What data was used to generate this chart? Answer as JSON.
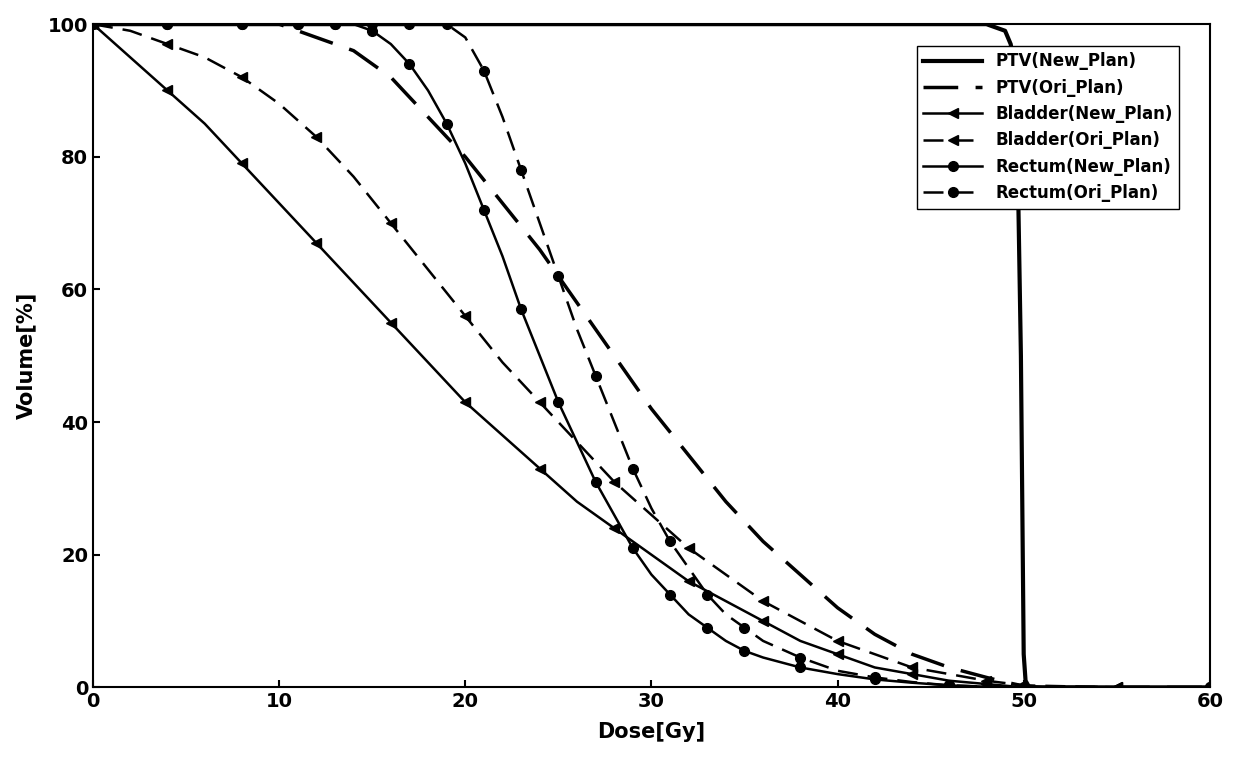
{
  "title": "",
  "xlabel": "Dose[Gy]",
  "ylabel": "Volume[%]",
  "xlim": [
    0,
    60
  ],
  "ylim": [
    0,
    100
  ],
  "xticks": [
    0,
    10,
    20,
    30,
    40,
    50,
    60
  ],
  "yticks": [
    0,
    20,
    40,
    60,
    80,
    100
  ],
  "background_color": "#ffffff",
  "ptv_new": {
    "x": [
      0,
      5,
      10,
      15,
      20,
      25,
      30,
      35,
      40,
      45,
      47,
      48,
      48.5,
      49.0,
      49.3,
      49.6,
      49.85,
      50.0,
      50.1,
      50.3,
      51,
      55,
      60
    ],
    "y": [
      100,
      100,
      100,
      100,
      100,
      100,
      100,
      100,
      100,
      100,
      100,
      100,
      99.5,
      99,
      97,
      92,
      50,
      5,
      1,
      0,
      0,
      0,
      0
    ]
  },
  "ptv_ori": {
    "x": [
      0,
      5,
      8,
      10,
      11,
      12,
      13,
      14,
      15,
      16,
      17,
      18,
      20,
      22,
      24,
      26,
      28,
      30,
      32,
      34,
      36,
      38,
      40,
      42,
      44,
      46,
      48,
      49,
      50,
      51,
      55,
      60
    ],
    "y": [
      100,
      100,
      100,
      100,
      99,
      98,
      97,
      96,
      94,
      92,
      89,
      86,
      80,
      73,
      66,
      58,
      50,
      42,
      35,
      28,
      22,
      17,
      12,
      8,
      5,
      3,
      1.5,
      0.8,
      0.2,
      0,
      0,
      0
    ]
  },
  "bladder_new": {
    "x": [
      0,
      2,
      4,
      6,
      8,
      10,
      12,
      14,
      16,
      18,
      20,
      22,
      24,
      26,
      28,
      30,
      32,
      34,
      36,
      38,
      40,
      42,
      44,
      46,
      48,
      50,
      55,
      60
    ],
    "y": [
      100,
      95,
      90,
      85,
      79,
      73,
      67,
      61,
      55,
      49,
      43,
      38,
      33,
      28,
      24,
      20,
      16,
      13,
      10,
      7,
      5,
      3,
      2,
      1,
      0.5,
      0,
      0,
      0
    ]
  },
  "bladder_ori": {
    "x": [
      0,
      2,
      4,
      6,
      8,
      10,
      12,
      14,
      16,
      18,
      20,
      22,
      24,
      26,
      28,
      30,
      32,
      34,
      36,
      38,
      40,
      42,
      44,
      46,
      48,
      50,
      55,
      60
    ],
    "y": [
      100,
      99,
      97,
      95,
      92,
      88,
      83,
      77,
      70,
      63,
      56,
      49,
      43,
      37,
      31,
      26,
      21,
      17,
      13,
      10,
      7,
      5,
      3,
      2,
      1,
      0.3,
      0,
      0
    ]
  },
  "rectum_new": {
    "x": [
      0,
      2,
      4,
      6,
      8,
      10,
      11,
      12,
      13,
      14,
      15,
      16,
      17,
      18,
      19,
      20,
      21,
      22,
      23,
      24,
      25,
      26,
      27,
      28,
      29,
      30,
      31,
      32,
      33,
      34,
      35,
      36,
      38,
      40,
      42,
      44,
      46,
      48,
      50,
      55,
      60
    ],
    "y": [
      100,
      100,
      100,
      100,
      100,
      100,
      100,
      100,
      100,
      100,
      99,
      97,
      94,
      90,
      85,
      79,
      72,
      65,
      57,
      50,
      43,
      37,
      31,
      26,
      21,
      17,
      14,
      11,
      9,
      7,
      5.5,
      4.5,
      3,
      2,
      1.2,
      0.7,
      0.3,
      0.1,
      0,
      0,
      0
    ]
  },
  "rectum_ori": {
    "x": [
      0,
      2,
      4,
      6,
      8,
      10,
      11,
      12,
      13,
      14,
      15,
      16,
      17,
      18,
      19,
      20,
      21,
      22,
      23,
      24,
      25,
      26,
      27,
      28,
      29,
      30,
      31,
      32,
      33,
      34,
      35,
      36,
      38,
      40,
      42,
      44,
      46,
      48,
      50,
      55,
      60
    ],
    "y": [
      100,
      100,
      100,
      100,
      100,
      100,
      100,
      100,
      100,
      100,
      100,
      100,
      100,
      100,
      100,
      98,
      93,
      86,
      78,
      70,
      62,
      54,
      47,
      40,
      33,
      27,
      22,
      18,
      14,
      11,
      9,
      7,
      4.5,
      2.5,
      1.5,
      0.8,
      0.3,
      0.1,
      0,
      0,
      0
    ]
  }
}
